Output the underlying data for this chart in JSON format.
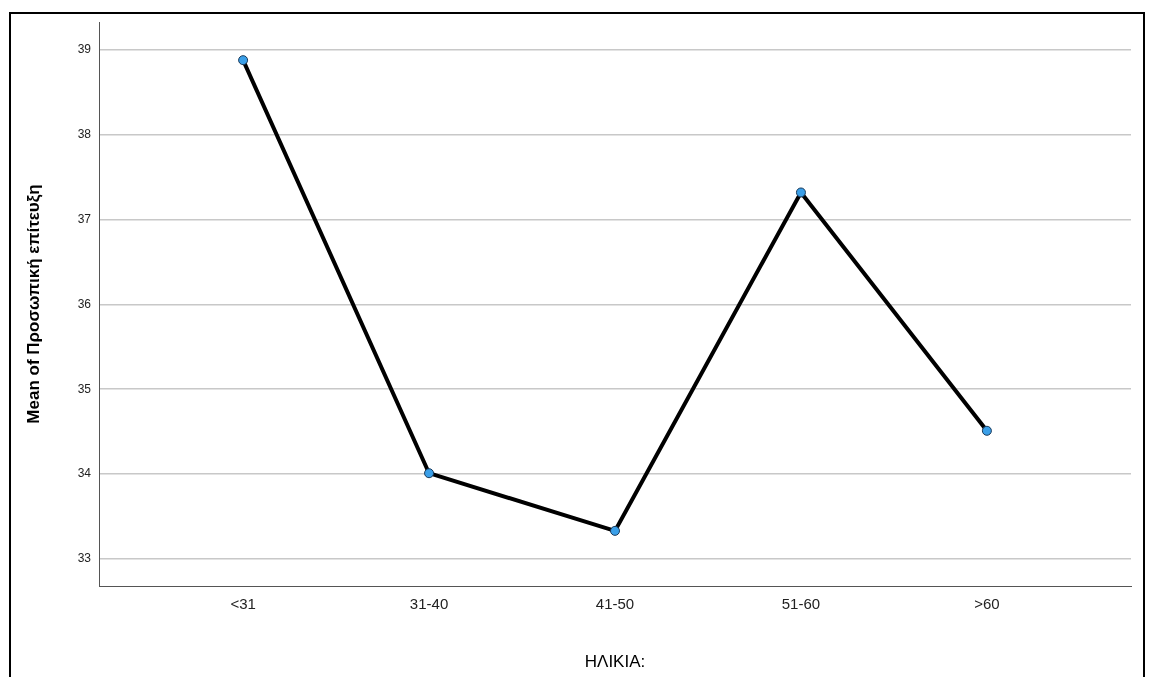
{
  "chart_data": {
    "type": "line",
    "xlabel": "ΗΛΙΚΙΑ:",
    "ylabel": "Mean of Προσωπική επίτευξη",
    "categories": [
      "<31",
      "31-40",
      "41-50",
      "51-60",
      ">60"
    ],
    "series": [
      {
        "color": "#000000",
        "values": [
          38.88,
          34.01,
          33.33,
          37.32,
          34.51
        ]
      }
    ],
    "ylim": [
      32.68,
      39.33
    ],
    "yticks": [
      33,
      34,
      35,
      36,
      37,
      38,
      39
    ],
    "grid": "y",
    "legend": false,
    "marker": "circle",
    "line_style": "solid"
  }
}
